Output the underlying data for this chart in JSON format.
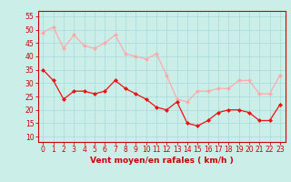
{
  "x": [
    0,
    1,
    2,
    3,
    4,
    5,
    6,
    7,
    8,
    9,
    10,
    11,
    12,
    13,
    14,
    15,
    16,
    17,
    18,
    19,
    20,
    21,
    22,
    23
  ],
  "wind_avg": [
    35,
    31,
    24,
    27,
    27,
    26,
    27,
    31,
    28,
    26,
    24,
    21,
    20,
    23,
    15,
    14,
    16,
    19,
    20,
    20,
    19,
    16,
    16,
    22
  ],
  "wind_gust": [
    49,
    51,
    43,
    48,
    44,
    43,
    45,
    48,
    41,
    40,
    39,
    41,
    33,
    24,
    23,
    27,
    27,
    28,
    28,
    31,
    31,
    26,
    26,
    33
  ],
  "xlabel": "Vent moyen/en rafales ( km/h )",
  "yticks": [
    10,
    15,
    20,
    25,
    30,
    35,
    40,
    45,
    50,
    55
  ],
  "xticks": [
    0,
    1,
    2,
    3,
    4,
    5,
    6,
    7,
    8,
    9,
    10,
    11,
    12,
    13,
    14,
    15,
    16,
    17,
    18,
    19,
    20,
    21,
    22,
    23
  ],
  "ylim": [
    8,
    57
  ],
  "xlim": [
    -0.5,
    23.5
  ],
  "bg_color": "#cceee8",
  "grid_color": "#aadddd",
  "avg_color": "#ee1111",
  "gust_color": "#ffaaaa",
  "xlabel_color": "#cc0000",
  "tick_color": "#cc0000",
  "spine_color": "#cc0000",
  "marker": "D",
  "markersize": 2.0,
  "linewidth": 0.9,
  "tick_fontsize": 5.5,
  "xlabel_fontsize": 6.5
}
